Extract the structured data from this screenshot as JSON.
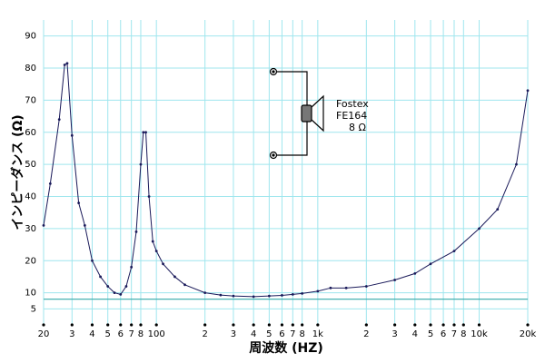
{
  "chart_data": {
    "type": "line",
    "xscale": "log",
    "x_label": "周波数 (HZ)",
    "y_label": "インピーダンス (Ω)",
    "annotation": [
      "Fostex",
      "FE164",
      "8 Ω"
    ],
    "x": [
      20,
      22,
      25,
      27,
      28,
      30,
      33,
      36,
      40,
      45,
      50,
      55,
      60,
      65,
      70,
      75,
      80,
      83,
      86,
      90,
      95,
      100,
      110,
      130,
      150,
      200,
      250,
      300,
      400,
      500,
      600,
      700,
      800,
      1000,
      1200,
      1500,
      2000,
      3000,
      4000,
      5000,
      7000,
      10000,
      13000,
      17000,
      20000
    ],
    "series": [
      {
        "color": "#1a1a5a",
        "values": [
          31,
          44,
          64,
          81,
          81.5,
          59,
          38,
          31,
          20,
          15,
          12,
          10,
          9.5,
          12,
          18,
          29,
          50,
          60,
          60,
          40,
          26,
          23,
          19,
          15,
          12.5,
          10,
          9.3,
          9,
          8.8,
          9,
          9.2,
          9.5,
          9.8,
          10.5,
          11.5,
          11.5,
          12,
          14,
          16,
          19,
          23,
          30,
          36,
          50,
          73
        ]
      }
    ],
    "reference_line": {
      "value": 8,
      "color": "#33aaaa"
    },
    "xlim": [
      20,
      20000
    ],
    "ylim": [
      0,
      95
    ],
    "xticks": [
      20,
      {
        "value": 30,
        "label": "3"
      },
      {
        "value": 40,
        "label": "4"
      },
      {
        "value": 50,
        "label": "5"
      },
      {
        "value": 60,
        "label": "6"
      },
      {
        "value": 70,
        "label": "7"
      },
      {
        "value": 80,
        "label": "8"
      },
      100,
      {
        "value": 200,
        "label": "2"
      },
      {
        "value": 300,
        "label": "3"
      },
      {
        "value": 400,
        "label": "4"
      },
      {
        "value": 500,
        "label": "5"
      },
      {
        "value": 600,
        "label": "6"
      },
      {
        "value": 700,
        "label": "7"
      },
      {
        "value": 800,
        "label": "8"
      },
      {
        "value": 1000,
        "label": "1k"
      },
      {
        "value": 2000,
        "label": "2"
      },
      {
        "value": 3000,
        "label": "3"
      },
      {
        "value": 4000,
        "label": "4"
      },
      {
        "value": 5000,
        "label": "5"
      },
      {
        "value": 6000,
        "label": "6"
      },
      {
        "value": 7000,
        "label": "7"
      },
      {
        "value": 8000,
        "label": "8"
      },
      {
        "value": 10000,
        "label": "10k"
      },
      {
        "value": 20000,
        "label": "20k"
      }
    ],
    "yticks": [
      5,
      10,
      20,
      30,
      40,
      50,
      60,
      70,
      80,
      90
    ],
    "grid": true,
    "grid_color": "#9fe6ee"
  }
}
